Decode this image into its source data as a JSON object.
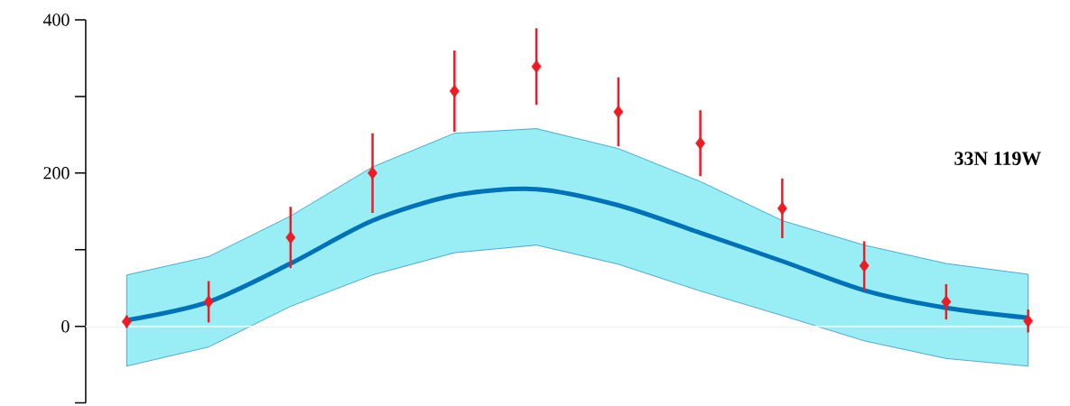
{
  "chart_data": {
    "type": "scatter",
    "categories": [
      null,
      null,
      null,
      null,
      null,
      null,
      null,
      null,
      null,
      null,
      null,
      null
    ],
    "ylim": [
      -100,
      400
    ],
    "yticks": [
      {
        "value": -100,
        "label": null
      },
      0,
      {
        "value": 100,
        "label": null
      },
      200,
      {
        "value": 300,
        "label": null
      },
      400
    ],
    "annotations": [
      "33N  119W"
    ],
    "ref_lines": [
      {
        "axis": "y",
        "value": 0,
        "color": "#ffffff"
      }
    ],
    "series": [
      {
        "type": "line",
        "color": "#0072b5",
        "values": [
          8,
          32,
          82,
          138,
          171,
          179,
          158,
          122,
          85,
          47,
          24,
          11
        ],
        "lower": [
          -52,
          -27,
          26,
          67,
          96,
          106,
          81,
          46,
          14,
          -19,
          -42,
          -52
        ],
        "upper": [
          67,
          91,
          144,
          208,
          252,
          258,
          232,
          189,
          138,
          106,
          82,
          68
        ]
      },
      {
        "color": "#ed1c24",
        "marker": "diamond",
        "values": [
          6,
          32,
          116,
          200,
          307,
          339,
          280,
          239,
          154,
          79,
          32,
          7
        ],
        "errors": [
          8,
          27,
          40,
          52,
          53,
          50,
          45,
          43,
          39,
          32,
          23,
          15
        ]
      }
    ]
  }
}
